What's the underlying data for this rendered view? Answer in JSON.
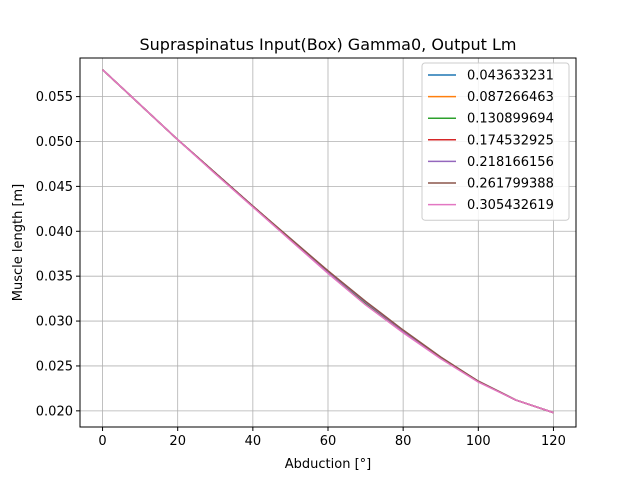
{
  "chart_data": {
    "type": "line",
    "title": "Supraspinatus Input(Box) Gamma0, Output Lm",
    "xlabel": "Abduction [°]",
    "ylabel": "Muscle length [m]",
    "xlim": [
      -6,
      126
    ],
    "ylim": [
      0.0182,
      0.0593
    ],
    "xticks": [
      0,
      20,
      40,
      60,
      80,
      100,
      120
    ],
    "yticks": [
      0.02,
      0.025,
      0.03,
      0.035,
      0.04,
      0.045,
      0.05,
      0.055
    ],
    "grid": true,
    "legend_position": "top-right",
    "x": [
      0,
      10,
      20,
      30,
      40,
      50,
      60,
      70,
      80,
      90,
      100,
      110,
      120
    ],
    "series": [
      {
        "name": "0.043633231",
        "color": "#1f77b4",
        "values": [
          0.058,
          0.0541,
          0.0502,
          0.0465,
          0.0428,
          0.0391,
          0.0355,
          0.032,
          0.0289,
          0.0259,
          0.0233,
          0.0212,
          0.0198
        ]
      },
      {
        "name": "0.087266463",
        "color": "#ff7f0e",
        "values": [
          0.058,
          0.0541,
          0.0502,
          0.0465,
          0.0428,
          0.0391,
          0.0355,
          0.032,
          0.0289,
          0.0259,
          0.0233,
          0.0212,
          0.0198
        ]
      },
      {
        "name": "0.130899694",
        "color": "#2ca02c",
        "values": [
          0.058,
          0.0541,
          0.0502,
          0.0465,
          0.0428,
          0.0391,
          0.0355,
          0.032,
          0.0289,
          0.0259,
          0.0233,
          0.0212,
          0.0198
        ]
      },
      {
        "name": "0.174532925",
        "color": "#d62728",
        "values": [
          0.058,
          0.0541,
          0.0502,
          0.0465,
          0.0428,
          0.0391,
          0.0356,
          0.0321,
          0.0289,
          0.0259,
          0.0233,
          0.0212,
          0.0198
        ]
      },
      {
        "name": "0.218166156",
        "color": "#9467bd",
        "values": [
          0.058,
          0.0541,
          0.0502,
          0.0465,
          0.0428,
          0.0391,
          0.0355,
          0.0321,
          0.0289,
          0.0259,
          0.0233,
          0.0212,
          0.0198
        ]
      },
      {
        "name": "0.261799388",
        "color": "#8c564b",
        "values": [
          0.058,
          0.0541,
          0.0502,
          0.0465,
          0.0428,
          0.0392,
          0.0356,
          0.0322,
          0.029,
          0.026,
          0.0233,
          0.0212,
          0.0198
        ]
      },
      {
        "name": "0.305432619",
        "color": "#e377c2",
        "values": [
          0.058,
          0.0541,
          0.0502,
          0.0464,
          0.0427,
          0.039,
          0.0353,
          0.0318,
          0.0287,
          0.0258,
          0.0232,
          0.0212,
          0.0198
        ]
      }
    ]
  }
}
